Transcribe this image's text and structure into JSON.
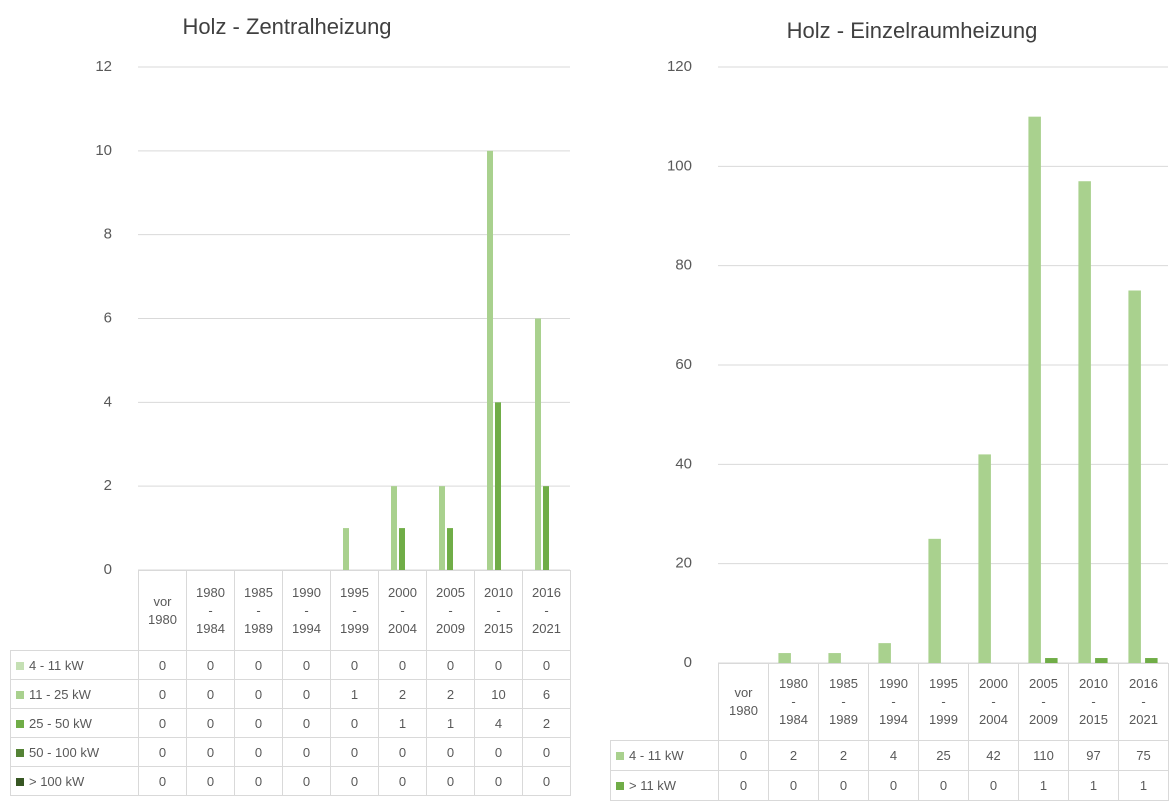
{
  "chart_data": [
    {
      "type": "bar",
      "title": "Holz - Zentralheizung",
      "categories": [
        "vor 1980",
        "1980 - 1984",
        "1985 - 1989",
        "1990 - 1994",
        "1995 - 1999",
        "2000 - 2004",
        "2005 - 2009",
        "2010 - 2015",
        "2016 - 2021"
      ],
      "series": [
        {
          "name": "4 - 11 kW",
          "color": "#c5e0b4",
          "values": [
            0,
            0,
            0,
            0,
            0,
            0,
            0,
            0,
            0
          ]
        },
        {
          "name": "11 - 25 kW",
          "color": "#a9d18e",
          "values": [
            0,
            0,
            0,
            0,
            1,
            2,
            2,
            10,
            6
          ]
        },
        {
          "name": "25 - 50 kW",
          "color": "#70ad47",
          "values": [
            0,
            0,
            0,
            0,
            0,
            1,
            1,
            4,
            2
          ]
        },
        {
          "name": "50 - 100 kW",
          "color": "#548235",
          "values": [
            0,
            0,
            0,
            0,
            0,
            0,
            0,
            0,
            0
          ]
        },
        {
          "name": "> 100 kW",
          "color": "#375623",
          "values": [
            0,
            0,
            0,
            0,
            0,
            0,
            0,
            0,
            0
          ]
        }
      ],
      "ylim": [
        0,
        12
      ],
      "yticks": [
        0,
        2,
        4,
        6,
        8,
        10,
        12
      ],
      "grid": true
    },
    {
      "type": "bar",
      "title": "Holz - Einzelraumheizung",
      "categories": [
        "vor 1980",
        "1980 - 1984",
        "1985 - 1989",
        "1990 - 1994",
        "1995 - 1999",
        "2000 - 2004",
        "2005 - 2009",
        "2010 - 2015",
        "2016 - 2021"
      ],
      "series": [
        {
          "name": "4 - 11 kW",
          "color": "#a9d18e",
          "values": [
            0,
            2,
            2,
            4,
            25,
            42,
            110,
            97,
            75
          ]
        },
        {
          "name": "> 11 kW",
          "color": "#70ad47",
          "values": [
            0,
            0,
            0,
            0,
            0,
            0,
            1,
            1,
            1
          ]
        }
      ],
      "ylim": [
        0,
        120
      ],
      "yticks": [
        0,
        20,
        40,
        60,
        80,
        100,
        120
      ],
      "grid": true
    }
  ]
}
